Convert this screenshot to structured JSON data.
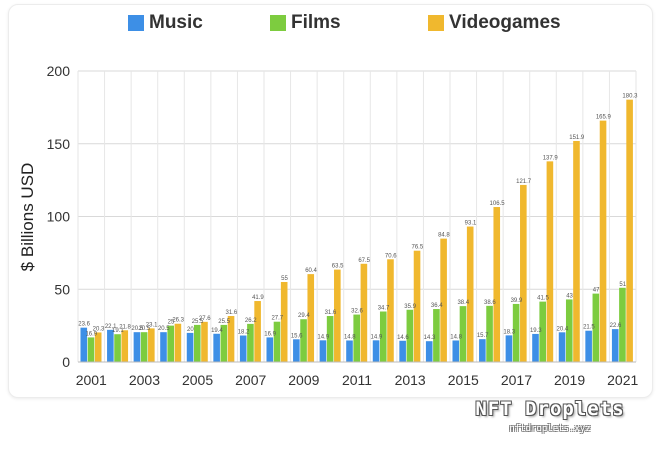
{
  "chart_data": {
    "type": "bar",
    "categories": [
      "2001",
      "2002",
      "2003",
      "2004",
      "2005",
      "2006",
      "2007",
      "2008",
      "2009",
      "2010",
      "2011",
      "2012",
      "2013",
      "2014",
      "2015",
      "2016",
      "2017",
      "2018",
      "2019",
      "2020",
      "2021"
    ],
    "x_tick_labels": [
      "2001",
      "2003",
      "2005",
      "2007",
      "2009",
      "2011",
      "2013",
      "2015",
      "2017",
      "2019",
      "2021"
    ],
    "series": [
      {
        "name": "Music",
        "color": "#3d8fe6",
        "values": [
          23.6,
          22.1,
          20.5,
          20.5,
          20.0,
          19.4,
          18.2,
          16.9,
          15.6,
          14.9,
          14.8,
          14.9,
          14.6,
          14.3,
          14.8,
          15.7,
          18.3,
          19.3,
          20.4,
          21.5,
          22.6
        ],
        "labels": [
          "23.6",
          "22.1",
          "20.5",
          "20.5",
          "20",
          "19.4",
          "18.2",
          "16.9",
          "15.6",
          "14.9",
          "14.8",
          "14.9",
          "14.6",
          "14.3",
          "14.8",
          "15.7",
          "18.3",
          "19.3",
          "20.4",
          "21.5",
          "22.6"
        ]
      },
      {
        "name": "Films",
        "color": "#7dcc3f",
        "values": [
          16.9,
          19.1,
          20.5,
          25.0,
          25.5,
          25.5,
          26.2,
          27.7,
          29.4,
          31.6,
          32.6,
          34.7,
          35.9,
          36.4,
          38.4,
          38.6,
          39.9,
          41.5,
          43.0,
          47.0,
          51.0
        ],
        "labels": [
          "16.9",
          "19.1",
          "20.5",
          "25",
          "25.5",
          "25.5",
          "26.2",
          "27.7",
          "29.4",
          "31.6",
          "32.6",
          "34.7",
          "35.9",
          "36.4",
          "38.4",
          "38.6",
          "39.9",
          "41.5",
          "43",
          "47",
          "51"
        ]
      },
      {
        "name": "Videogames",
        "color": "#f0b82e",
        "values": [
          20.3,
          21.8,
          23.1,
          26.3,
          27.6,
          31.6,
          41.9,
          55.0,
          60.4,
          63.5,
          67.5,
          70.6,
          76.5,
          84.8,
          93.1,
          106.5,
          121.7,
          137.9,
          151.9,
          165.9,
          180.3
        ],
        "labels": [
          "20.3",
          "21.8",
          "23.1",
          "26.3",
          "27.6",
          "31.6",
          "41.9",
          "55",
          "60.4",
          "63.5",
          "67.5",
          "70.6",
          "76.5",
          "84.8",
          "93.1",
          "106.5",
          "121.7",
          "137.9",
          "151.9",
          "165.9",
          "180.3"
        ]
      }
    ],
    "ylabel": "$ Billions USD",
    "ylim": [
      0,
      200
    ],
    "yticks": [
      0,
      50,
      100,
      150,
      200
    ],
    "grid": true,
    "legend_position": "top"
  },
  "watermark": {
    "title": "NFT Droplets",
    "subtitle": "nftdroplets.xyz"
  }
}
